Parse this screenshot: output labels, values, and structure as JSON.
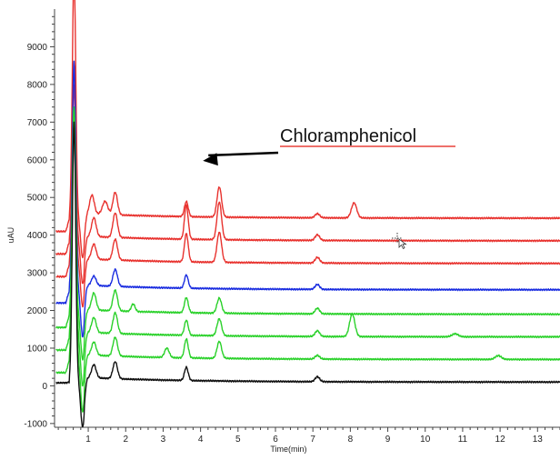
{
  "chart_data": {
    "type": "line",
    "title": "",
    "xlabel": "Time(min)",
    "ylabel": "uAU",
    "xlim": [
      0.1,
      13.6
    ],
    "ylim": [
      -1100,
      10000
    ],
    "x_ticks": [
      1,
      2,
      3,
      4,
      5,
      6,
      7,
      8,
      9,
      10,
      11,
      12,
      13
    ],
    "y_ticks": [
      -1000,
      0,
      1000,
      2000,
      3000,
      4000,
      5000,
      6000,
      7000,
      8000,
      9000
    ],
    "grid": false,
    "legend": "none",
    "annotation": {
      "text": "Chloramphenicol",
      "target_x": 4.5,
      "target_y": 5200,
      "underline_color": "#e8403a",
      "arrow_color": "#000000"
    },
    "series": [
      {
        "color": "#e8322e",
        "baseline": 4450,
        "spike": 11000,
        "dip": 3400,
        "peaks": [
          [
            1.1,
            4950,
            0.06
          ],
          [
            1.45,
            4800,
            0.07
          ],
          [
            1.72,
            5050,
            0.06
          ],
          [
            3.62,
            4850,
            0.05
          ],
          [
            4.5,
            5250,
            0.06
          ],
          [
            7.12,
            4560,
            0.06
          ],
          [
            8.1,
            4850,
            0.07
          ]
        ]
      },
      {
        "color": "#e8322e",
        "baseline": 3850,
        "spike": 8500,
        "dip": 2700,
        "peaks": [
          [
            1.15,
            4350,
            0.06
          ],
          [
            1.72,
            4500,
            0.06
          ],
          [
            3.62,
            4750,
            0.05
          ],
          [
            4.5,
            4850,
            0.06
          ],
          [
            7.12,
            4000,
            0.06
          ]
        ]
      },
      {
        "color": "#e8322e",
        "baseline": 3250,
        "spike": 8000,
        "dip": 2100,
        "peaks": [
          [
            1.15,
            3650,
            0.06
          ],
          [
            1.72,
            3800,
            0.06
          ],
          [
            3.62,
            4000,
            0.05
          ],
          [
            4.5,
            4050,
            0.06
          ],
          [
            7.12,
            3400,
            0.06
          ]
        ]
      },
      {
        "color": "#1a2de0",
        "baseline": 2550,
        "spike": 8600,
        "dip": 1300,
        "peaks": [
          [
            1.15,
            2800,
            0.06
          ],
          [
            1.72,
            3000,
            0.06
          ],
          [
            3.62,
            2900,
            0.05
          ],
          [
            7.12,
            2680,
            0.06
          ]
        ]
      },
      {
        "color": "#2ad12a",
        "baseline": 1900,
        "spike": 7400,
        "dip": 700,
        "peaks": [
          [
            1.15,
            2350,
            0.06
          ],
          [
            1.72,
            2450,
            0.06
          ],
          [
            2.2,
            2100,
            0.05
          ],
          [
            3.62,
            2300,
            0.05
          ],
          [
            4.5,
            2300,
            0.06
          ],
          [
            7.12,
            2050,
            0.06
          ]
        ]
      },
      {
        "color": "#2ad12a",
        "baseline": 1300,
        "spike": 7300,
        "dip": 0,
        "peaks": [
          [
            1.15,
            1700,
            0.06
          ],
          [
            1.72,
            1850,
            0.06
          ],
          [
            3.62,
            1700,
            0.05
          ],
          [
            4.5,
            1750,
            0.06
          ],
          [
            7.12,
            1450,
            0.06
          ],
          [
            8.05,
            1900,
            0.07
          ],
          [
            10.8,
            1380,
            0.08
          ]
        ]
      },
      {
        "color": "#2ad12a",
        "baseline": 700,
        "spike": 7200,
        "dip": -700,
        "peaks": [
          [
            1.15,
            1050,
            0.06
          ],
          [
            1.72,
            1200,
            0.06
          ],
          [
            3.1,
            950,
            0.06
          ],
          [
            3.62,
            1200,
            0.05
          ],
          [
            4.5,
            1150,
            0.06
          ],
          [
            7.12,
            800,
            0.06
          ],
          [
            11.95,
            800,
            0.08
          ]
        ]
      },
      {
        "color": "#111111",
        "baseline": 100,
        "spike": 7000,
        "dip": -1100,
        "peaks": [
          [
            1.15,
            450,
            0.06
          ],
          [
            1.72,
            550,
            0.06
          ],
          [
            3.62,
            450,
            0.05
          ],
          [
            7.12,
            230,
            0.06
          ]
        ]
      }
    ]
  }
}
